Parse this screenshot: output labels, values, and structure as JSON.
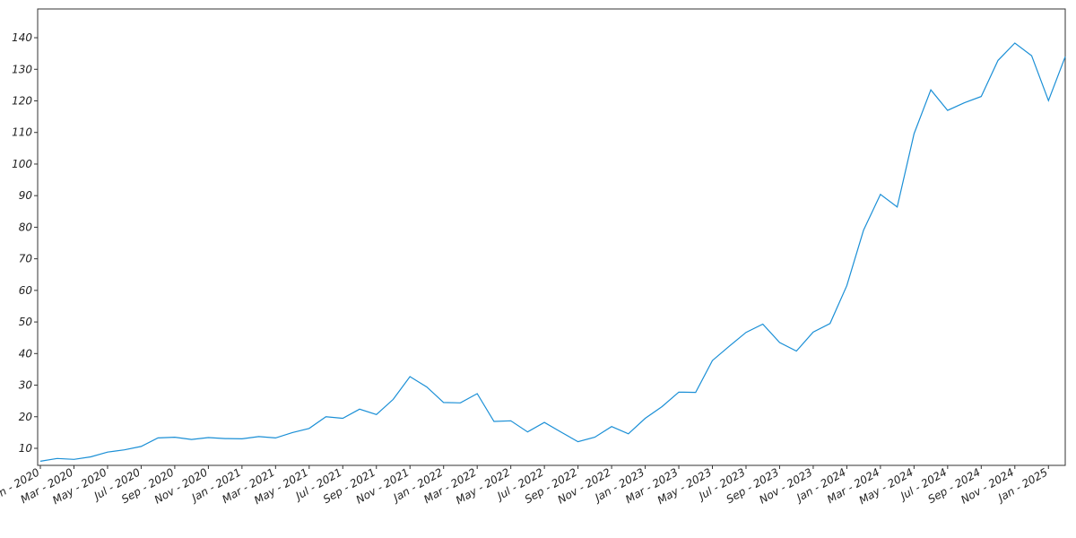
{
  "chart_data": {
    "type": "line",
    "color": "#1a8fd6",
    "x": [
      "2020-01",
      "2020-02",
      "2020-03",
      "2020-04",
      "2020-05",
      "2020-06",
      "2020-07",
      "2020-08",
      "2020-09",
      "2020-10",
      "2020-11",
      "2020-12",
      "2021-01",
      "2021-02",
      "2021-03",
      "2021-04",
      "2021-05",
      "2021-06",
      "2021-07",
      "2021-08",
      "2021-09",
      "2021-10",
      "2021-11",
      "2021-12",
      "2022-01",
      "2022-02",
      "2022-03",
      "2022-04",
      "2022-05",
      "2022-06",
      "2022-07",
      "2022-08",
      "2022-09",
      "2022-10",
      "2022-11",
      "2022-12",
      "2023-01",
      "2023-02",
      "2023-03",
      "2023-04",
      "2023-05",
      "2023-06",
      "2023-07",
      "2023-08",
      "2023-09",
      "2023-10",
      "2023-11",
      "2023-12",
      "2024-01",
      "2024-02",
      "2024-03",
      "2024-04",
      "2024-05",
      "2024-06",
      "2024-07",
      "2024-08",
      "2024-09",
      "2024-10",
      "2024-11",
      "2024-12",
      "2025-01",
      "2025-02"
    ],
    "values": [
      5.9,
      6.8,
      6.5,
      7.3,
      8.8,
      9.5,
      10.6,
      13.3,
      13.5,
      12.8,
      13.4,
      13.1,
      13.0,
      13.7,
      13.3,
      15.0,
      16.3,
      20.0,
      19.5,
      22.4,
      20.7,
      25.5,
      32.7,
      29.4,
      24.5,
      24.4,
      27.3,
      18.5,
      18.7,
      15.2,
      18.2,
      15.1,
      12.1,
      13.5,
      16.9,
      14.6,
      19.5,
      23.2,
      27.8,
      27.7,
      37.8,
      42.3,
      46.7,
      49.3,
      43.5,
      40.8,
      46.8,
      49.5,
      61.5,
      79.1,
      90.4,
      86.4,
      109.6,
      123.5,
      117.0,
      119.4,
      121.4,
      132.8,
      138.3,
      134.3,
      120.1,
      134.0
    ],
    "xlim": [
      "2020-01",
      "2025-02"
    ],
    "ylim": [
      4.6,
      149.1
    ],
    "yticks": [
      10,
      20,
      30,
      40,
      50,
      60,
      70,
      80,
      90,
      100,
      110,
      120,
      130,
      140
    ],
    "xticks": [
      {
        "value": "2020-01",
        "label": "Jan - 2020"
      },
      {
        "value": "2020-03",
        "label": "Mar - 2020"
      },
      {
        "value": "2020-05",
        "label": "May - 2020"
      },
      {
        "value": "2020-07",
        "label": "Jul - 2020"
      },
      {
        "value": "2020-09",
        "label": "Sep - 2020"
      },
      {
        "value": "2020-11",
        "label": "Nov - 2020"
      },
      {
        "value": "2021-01",
        "label": "Jan - 2021"
      },
      {
        "value": "2021-03",
        "label": "Mar - 2021"
      },
      {
        "value": "2021-05",
        "label": "May - 2021"
      },
      {
        "value": "2021-07",
        "label": "Jul - 2021"
      },
      {
        "value": "2021-09",
        "label": "Sep - 2021"
      },
      {
        "value": "2021-11",
        "label": "Nov - 2021"
      },
      {
        "value": "2022-01",
        "label": "Jan - 2022"
      },
      {
        "value": "2022-03",
        "label": "Mar - 2022"
      },
      {
        "value": "2022-05",
        "label": "May - 2022"
      },
      {
        "value": "2022-07",
        "label": "Jul - 2022"
      },
      {
        "value": "2022-09",
        "label": "Sep - 2022"
      },
      {
        "value": "2022-11",
        "label": "Nov - 2022"
      },
      {
        "value": "2023-01",
        "label": "Jan - 2023"
      },
      {
        "value": "2023-03",
        "label": "Mar - 2023"
      },
      {
        "value": "2023-05",
        "label": "May - 2023"
      },
      {
        "value": "2023-07",
        "label": "Jul - 2023"
      },
      {
        "value": "2023-09",
        "label": "Sep - 2023"
      },
      {
        "value": "2023-11",
        "label": "Nov - 2023"
      },
      {
        "value": "2024-01",
        "label": "Jan - 2024"
      },
      {
        "value": "2024-03",
        "label": "Mar - 2024"
      },
      {
        "value": "2024-05",
        "label": "May - 2024"
      },
      {
        "value": "2024-07",
        "label": "Jul - 2024"
      },
      {
        "value": "2024-09",
        "label": "Sep - 2024"
      },
      {
        "value": "2024-11",
        "label": "Nov - 2024"
      },
      {
        "value": "2025-01",
        "label": "Jan - 2025"
      }
    ]
  }
}
